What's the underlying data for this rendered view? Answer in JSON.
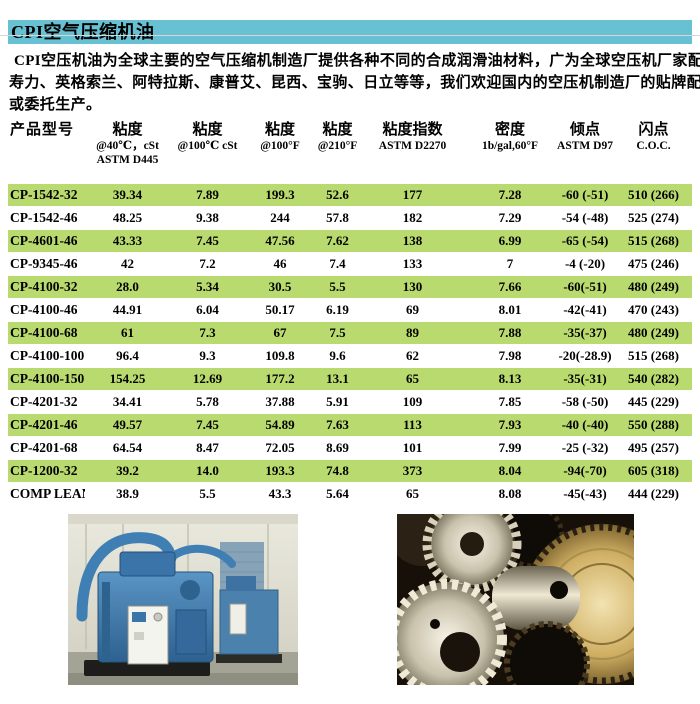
{
  "colors": {
    "title_bar_bg": "#68c1d3",
    "row_stripe_green": "#b9da6e",
    "text": "#000000"
  },
  "header": {
    "title": "CPI空气压缩机油"
  },
  "intro": {
    "lines": [
      "CPI空压机油为全球主要的空气压缩机制造厂提供各种不同的合成润滑油材料，广为全球空压机厂家配套：",
      "寿力、英格索兰、阿特拉斯、康普艾、昆西、宝驹、日立等等，我们欢迎国内的空压机制造厂的贴牌配套",
      "或委托生产。"
    ]
  },
  "table": {
    "columns": [
      {
        "key": "product",
        "lines": [
          "产品型号"
        ]
      },
      {
        "key": "v40",
        "lines": [
          "粘度",
          "@40℃，cSt",
          "ASTM D445"
        ]
      },
      {
        "key": "v100c",
        "lines": [
          "粘度",
          "@100℃ cSt"
        ]
      },
      {
        "key": "v100f",
        "lines": [
          "粘度",
          "@100°F"
        ]
      },
      {
        "key": "v210f",
        "lines": [
          "粘度",
          "@210°F"
        ]
      },
      {
        "key": "vi",
        "lines": [
          "粘度指数",
          "ASTM D2270"
        ]
      },
      {
        "key": "density",
        "lines": [
          "密度",
          "1b/gal,60°F"
        ]
      },
      {
        "key": "pour",
        "lines": [
          "倾点",
          "ASTM D97"
        ]
      },
      {
        "key": "flash",
        "lines": [
          "闪点",
          "C.O.C."
        ]
      }
    ],
    "rows": [
      {
        "product": "CP-1542-32",
        "v40": "39.34",
        "v100c": "7.89",
        "v100f": "199.3",
        "v210f": "52.6",
        "vi": "177",
        "density": "7.28",
        "pour": "-60 (-51)",
        "flash": "510 (266)",
        "highlight": true
      },
      {
        "product": "CP-1542-46",
        "v40": "48.25",
        "v100c": "9.38",
        "v100f": "244",
        "v210f": "57.8",
        "vi": "182",
        "density": "7.29",
        "pour": "-54 (-48)",
        "flash": "525 (274)",
        "highlight": false
      },
      {
        "product": "CP-4601-46",
        "v40": "43.33",
        "v100c": "7.45",
        "v100f": "47.56",
        "v210f": "7.62",
        "vi": "138",
        "density": "6.99",
        "pour": "-65 (-54)",
        "flash": "515 (268)",
        "highlight": true
      },
      {
        "product": "CP-9345-46",
        "v40": "42",
        "v100c": "7.2",
        "v100f": "46",
        "v210f": "7.4",
        "vi": "133",
        "density": "7",
        "pour": "-4 (-20)",
        "flash": "475 (246)",
        "highlight": false
      },
      {
        "product": "CP-4100-32",
        "v40": "28.0",
        "v100c": "5.34",
        "v100f": "30.5",
        "v210f": "5.5",
        "vi": "130",
        "density": "7.66",
        "pour": "-60(-51)",
        "flash": "480 (249)",
        "highlight": true
      },
      {
        "product": "CP-4100-46",
        "v40": "44.91",
        "v100c": "6.04",
        "v100f": "50.17",
        "v210f": "6.19",
        "vi": "69",
        "density": "8.01",
        "pour": "-42(-41)",
        "flash": "470 (243)",
        "highlight": false
      },
      {
        "product": "CP-4100-68",
        "v40": "61",
        "v100c": "7.3",
        "v100f": "67",
        "v210f": "7.5",
        "vi": "89",
        "density": "7.88",
        "pour": "-35(-37)",
        "flash": "480 (249)",
        "highlight": true
      },
      {
        "product": "CP-4100-100",
        "v40": "96.4",
        "v100c": "9.3",
        "v100f": "109.8",
        "v210f": "9.6",
        "vi": "62",
        "density": "7.98",
        "pour": "-20(-28.9)",
        "flash": "515 (268)",
        "highlight": false
      },
      {
        "product": "CP-4100-150",
        "v40": "154.25",
        "v100c": "12.69",
        "v100f": "177.2",
        "v210f": "13.1",
        "vi": "65",
        "density": "8.13",
        "pour": "-35(-31)",
        "flash": "540 (282)",
        "highlight": true
      },
      {
        "product": "CP-4201-32",
        "v40": "34.41",
        "v100c": "5.78",
        "v100f": "37.88",
        "v210f": "5.91",
        "vi": "109",
        "density": "7.85",
        "pour": "-58 (-50)",
        "flash": "445 (229)",
        "highlight": false
      },
      {
        "product": "CP-4201-46",
        "v40": "49.57",
        "v100c": "7.45",
        "v100f": "54.89",
        "v210f": "7.63",
        "vi": "113",
        "density": "7.93",
        "pour": "-40 (-40)",
        "flash": "550 (288)",
        "highlight": true
      },
      {
        "product": "CP-4201-68",
        "v40": "64.54",
        "v100c": "8.47",
        "v100f": "72.05",
        "v210f": "8.69",
        "vi": "101",
        "density": "7.99",
        "pour": "-25 (-32)",
        "flash": "495 (257)",
        "highlight": false
      },
      {
        "product": "CP-1200-32",
        "v40": "39.2",
        "v100c": "14.0",
        "v100f": "193.3",
        "v210f": "74.8",
        "vi": "373",
        "density": "8.04",
        "pour": "-94(-70)",
        "flash": "605 (318)",
        "highlight": true
      },
      {
        "product": "COMP LEANII",
        "v40": "38.9",
        "v100c": "5.5",
        "v100f": "43.3",
        "v210f": "5.64",
        "vi": "65",
        "density": "8.08",
        "pour": "-45(-43)",
        "flash": "444 (229)",
        "highlight": false
      }
    ]
  }
}
